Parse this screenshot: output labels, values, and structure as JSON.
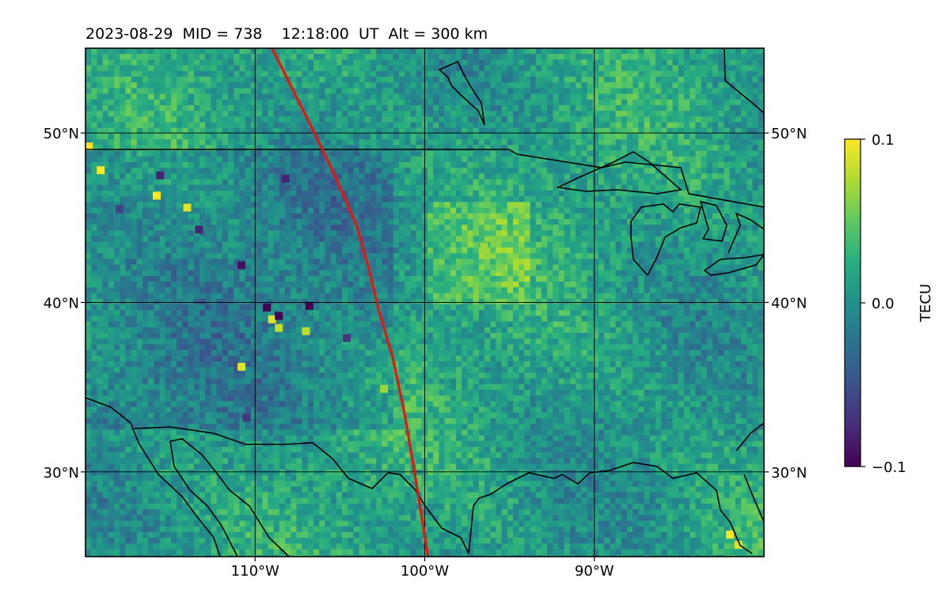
{
  "chart_data": {
    "type": "heatmap",
    "title": "2023-08-29  MID = 738    12:18:00  UT  Alt = 300 km",
    "projection": "map of central North America",
    "map_extent": {
      "lon": [
        -120,
        -80
      ],
      "lat": [
        25,
        55
      ]
    },
    "x_ticks": [
      {
        "value": -110,
        "label": "110°W"
      },
      {
        "value": -100,
        "label": "100°W"
      },
      {
        "value": -90,
        "label": "90°W"
      }
    ],
    "y_ticks": [
      {
        "value": 30,
        "label": "30°N"
      },
      {
        "value": 40,
        "label": "40°N"
      },
      {
        "value": 50,
        "label": "50°N"
      }
    ],
    "grid": true,
    "colormap": "viridis",
    "colorbar": {
      "label": "TECU",
      "range": [
        -0.1,
        0.1
      ],
      "ticks": [
        {
          "value": 0.1,
          "label": "0.1"
        },
        {
          "value": 0.0,
          "label": "0.0"
        },
        {
          "value": -0.1,
          "label": "−0.1"
        }
      ]
    },
    "overlays": [
      {
        "type": "line",
        "color": "#e8140e",
        "description": "red terminator/track line",
        "points": [
          [
            -109,
            55
          ],
          [
            -108,
            53
          ],
          [
            -106.5,
            50
          ],
          [
            -105.3,
            47.5
          ],
          [
            -104,
            44.5
          ],
          [
            -103.3,
            42
          ],
          [
            -102.7,
            39.5
          ],
          [
            -101.9,
            36.8
          ],
          [
            -101.2,
            33.5
          ],
          [
            -100.6,
            30
          ],
          [
            -100.2,
            27.5
          ],
          [
            -99.8,
            25
          ]
        ]
      }
    ],
    "hotspots": [
      {
        "lon": -119.8,
        "lat": 49.2,
        "value": 0.1
      },
      {
        "lon": -119.1,
        "lat": 47.8,
        "value": 0.1
      },
      {
        "lon": -115.8,
        "lat": 46.3,
        "value": 0.1
      },
      {
        "lon": -114,
        "lat": 45.6,
        "value": 0.09
      },
      {
        "lon": -110.8,
        "lat": 36.2,
        "value": 0.09
      },
      {
        "lon": -109,
        "lat": 39.0,
        "value": 0.09
      },
      {
        "lon": -108.6,
        "lat": 38.5,
        "value": 0.08
      },
      {
        "lon": -107,
        "lat": 38.3,
        "value": 0.08
      },
      {
        "lon": -102.4,
        "lat": 34.9,
        "value": 0.07
      },
      {
        "lon": -96.5,
        "lat": 43.3,
        "value": 0.07
      },
      {
        "lon": -95.5,
        "lat": 42.0,
        "value": 0.06
      },
      {
        "lon": -82,
        "lat": 26.3,
        "value": 0.1
      },
      {
        "lon": -81.5,
        "lat": 25.7,
        "value": 0.09
      },
      {
        "lon": -109.3,
        "lat": 39.7,
        "value": -0.1
      },
      {
        "lon": -108.6,
        "lat": 39.2,
        "value": -0.1
      },
      {
        "lon": -106.8,
        "lat": 39.8,
        "value": -0.1
      },
      {
        "lon": -110.8,
        "lat": 42.2,
        "value": -0.09
      },
      {
        "lon": -113.3,
        "lat": 44.3,
        "value": -0.08
      },
      {
        "lon": -108.2,
        "lat": 47.3,
        "value": -0.08
      },
      {
        "lon": -115.6,
        "lat": 47.5,
        "value": -0.08
      },
      {
        "lon": -110.5,
        "lat": 33.2,
        "value": -0.07
      },
      {
        "lon": -104.6,
        "lat": 37.9,
        "value": -0.07
      },
      {
        "lon": -118,
        "lat": 45.5,
        "value": -0.06
      }
    ]
  }
}
